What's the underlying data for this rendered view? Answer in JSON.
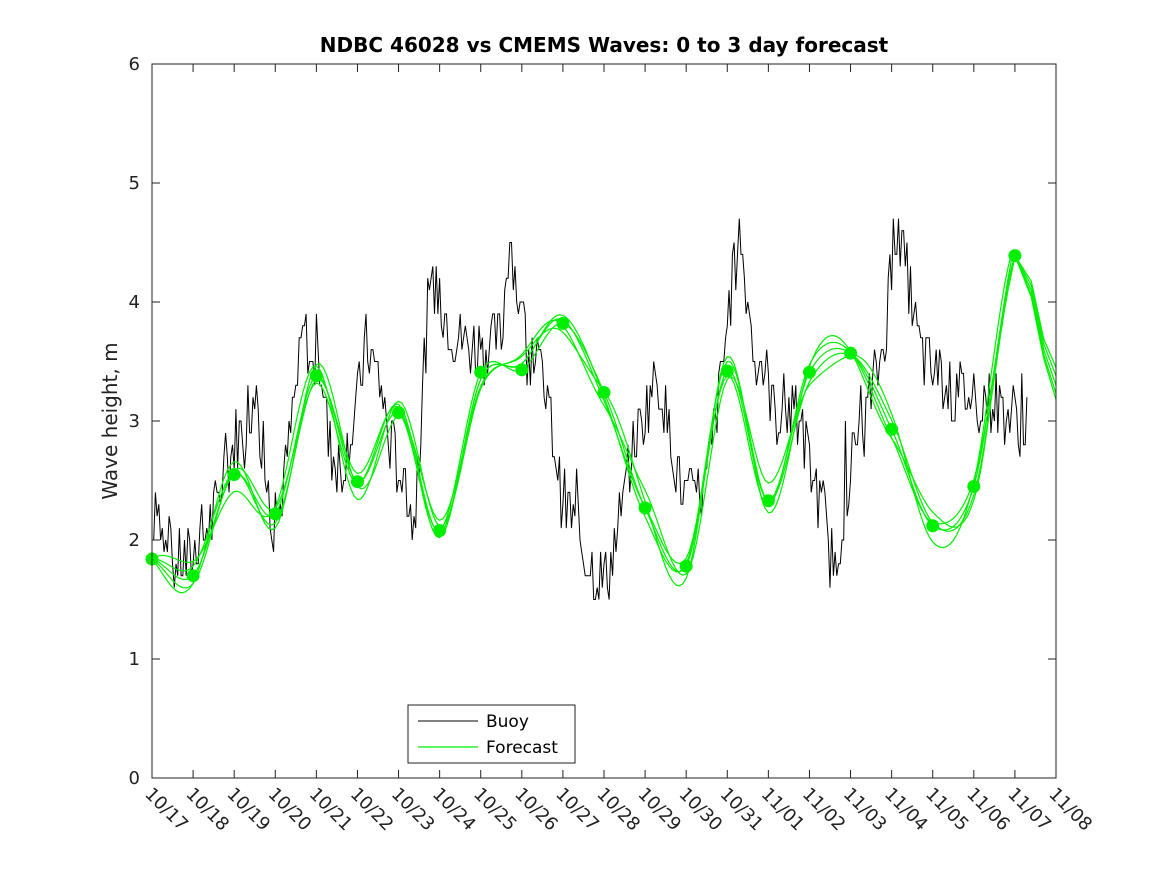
{
  "chart_data": {
    "type": "line",
    "title": "NDBC 46028 vs CMEMS Waves: 0 to 3 day forecast",
    "xlabel": "",
    "ylabel": "Wave height, m",
    "xlim": [
      0,
      22
    ],
    "ylim": [
      0,
      6
    ],
    "yticks": [
      "0",
      "1",
      "2",
      "3",
      "4",
      "5",
      "6"
    ],
    "xticks": [
      "10/17",
      "10/18",
      "10/19",
      "10/20",
      "10/21",
      "10/22",
      "10/23",
      "10/24",
      "10/25",
      "10/26",
      "10/27",
      "10/28",
      "10/29",
      "10/30",
      "10/31",
      "11/01",
      "11/02",
      "11/03",
      "11/04",
      "11/05",
      "11/06",
      "11/07",
      "11/08"
    ],
    "legend": {
      "placement": "bottom-center",
      "entries": [
        "Buoy",
        "Forecast"
      ]
    },
    "colors": {
      "buoy": "#000000",
      "forecast": "#00ee00"
    },
    "buoy_anchor": {
      "x": [
        0,
        0.1,
        0.25,
        0.4,
        0.6,
        0.8,
        1.0,
        1.2,
        1.5,
        1.8,
        2.1,
        2.5,
        2.7,
        2.9,
        3.1,
        3.4,
        3.7,
        3.9,
        4.1,
        4.3,
        4.6,
        4.9,
        5.2,
        5.5,
        5.8,
        6.1,
        6.4,
        6.7,
        7.0,
        7.2,
        7.5,
        7.8,
        8.1,
        8.5,
        8.7,
        9.0,
        9.3,
        9.6,
        9.8,
        9.95,
        10.2,
        10.5,
        10.8,
        11.1,
        11.4,
        11.7,
        12.0,
        12.3,
        12.6,
        12.9,
        13.2,
        13.5,
        13.8,
        14.1,
        14.3,
        14.6,
        14.9,
        15.2,
        15.5,
        15.8,
        16.1,
        16.35,
        16.6,
        16.9,
        17.2,
        17.5,
        17.8,
        18.1,
        18.4,
        18.7,
        19.0,
        19.3,
        19.5,
        19.8,
        20.1,
        20.4,
        20.7,
        20.9,
        21.1,
        21.3
      ],
      "y": [
        2.0,
        2.5,
        2.0,
        1.8,
        1.8,
        1.8,
        1.85,
        2.0,
        2.2,
        2.6,
        2.9,
        3.2,
        2.7,
        2.2,
        2.2,
        3.0,
        3.8,
        3.4,
        3.5,
        2.8,
        2.6,
        3.0,
        3.6,
        3.4,
        2.8,
        2.5,
        2.1,
        3.9,
        4.1,
        3.8,
        3.7,
        3.6,
        3.6,
        3.7,
        4.6,
        3.8,
        3.6,
        3.2,
        2.8,
        2.4,
        2.2,
        1.9,
        1.7,
        1.7,
        2.2,
        2.8,
        3.1,
        3.4,
        2.9,
        2.4,
        2.3,
        2.5,
        3.2,
        4.1,
        4.6,
        3.7,
        3.4,
        3.0,
        3.1,
        2.9,
        2.5,
        2.2,
        1.7,
        2.4,
        2.9,
        3.2,
        3.6,
        4.6,
        4.2,
        3.6,
        3.4,
        3.37,
        3.2,
        3.22,
        3.2,
        3.15,
        3.1,
        3.05,
        3.0,
        2.95
      ]
    },
    "forecast_points": {
      "x": [
        0,
        1,
        2,
        3,
        4,
        5,
        6,
        7,
        8,
        9,
        10,
        11,
        12,
        13,
        14,
        15,
        16,
        17,
        18,
        19,
        20,
        21
      ],
      "y": [
        1.84,
        1.7,
        2.55,
        2.22,
        3.38,
        2.49,
        3.07,
        2.08,
        3.41,
        3.43,
        3.82,
        3.24,
        2.27,
        1.78,
        3.42,
        2.33,
        3.41,
        3.57,
        2.93,
        2.12,
        2.45,
        4.39
      ]
    }
  }
}
